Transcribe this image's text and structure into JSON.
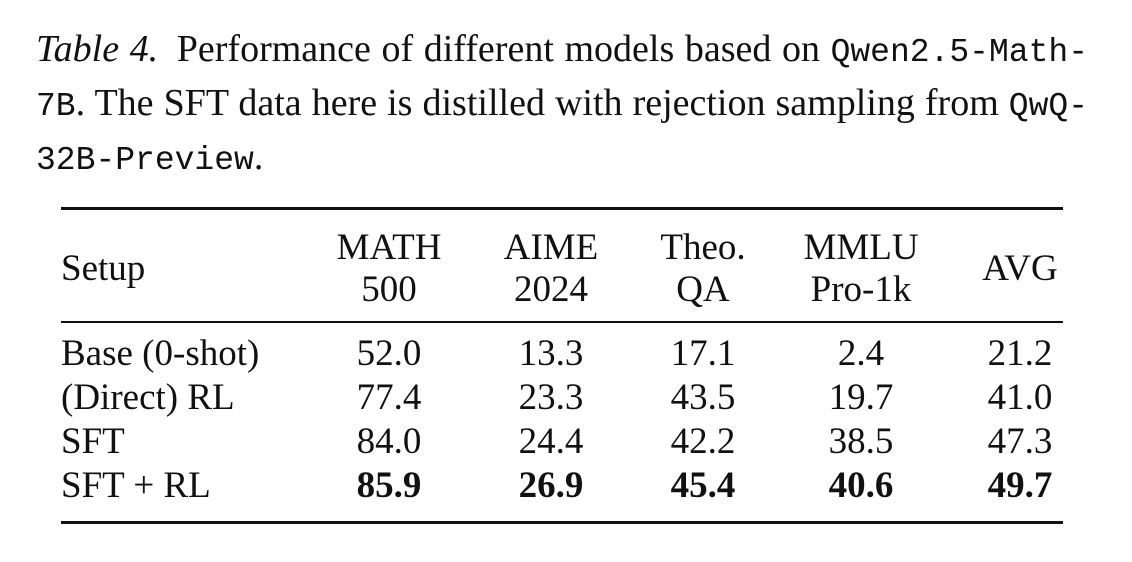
{
  "caption": {
    "label": "Table 4.",
    "text_1": "Performance of different models based on ",
    "mono_1": "Qwen2.5-Math-7B",
    "text_2": ". The SFT data here is distilled with rejection sampling from ",
    "mono_2": "QwQ-32B-Preview",
    "text_3": "."
  },
  "table": {
    "headers": [
      {
        "line1": "Setup",
        "line2": ""
      },
      {
        "line1": "MATH",
        "line2": "500"
      },
      {
        "line1": "AIME",
        "line2": "2024"
      },
      {
        "line1": "Theo.",
        "line2": "QA"
      },
      {
        "line1": "MMLU",
        "line2": "Pro-1k"
      },
      {
        "line1": "AVG",
        "line2": ""
      }
    ],
    "rows": [
      {
        "name": "Base (0-shot)",
        "values": [
          "52.0",
          "13.3",
          "17.1",
          "2.4",
          "21.2"
        ],
        "bold": false
      },
      {
        "name": "(Direct) RL",
        "values": [
          "77.4",
          "23.3",
          "43.5",
          "19.7",
          "41.0"
        ],
        "bold": false
      },
      {
        "name": "SFT",
        "values": [
          "84.0",
          "24.4",
          "42.2",
          "38.5",
          "47.3"
        ],
        "bold": false
      },
      {
        "name": "SFT + RL",
        "values": [
          "85.9",
          "26.9",
          "45.4",
          "40.6",
          "49.7"
        ],
        "bold": true
      }
    ]
  }
}
